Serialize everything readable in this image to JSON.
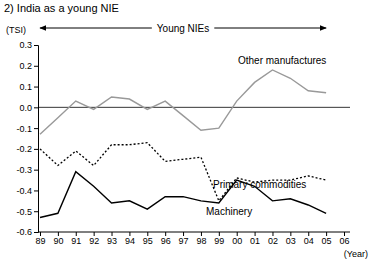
{
  "chart_data": {
    "type": "line",
    "title": "2) India as a young NIE",
    "y_label": "(TSI)",
    "x_label": "(Year)",
    "annotation": "Young NIEs",
    "categories": [
      "89",
      "90",
      "91",
      "92",
      "93",
      "94",
      "95",
      "96",
      "97",
      "98",
      "99",
      "00",
      "01",
      "02",
      "03",
      "04",
      "05",
      "06"
    ],
    "series": [
      {
        "name": "Other manufactures",
        "color": "#999999",
        "line_style": "solid",
        "values": [
          -0.13,
          -0.05,
          0.03,
          -0.01,
          0.05,
          0.04,
          -0.01,
          0.03,
          -0.04,
          -0.11,
          -0.1,
          0.03,
          0.12,
          0.18,
          0.14,
          0.08,
          0.07,
          null
        ]
      },
      {
        "name": "Primary commodities",
        "color": "#000000",
        "line_style": "dotted",
        "values": [
          -0.2,
          -0.28,
          -0.21,
          -0.28,
          -0.18,
          -0.18,
          -0.17,
          -0.26,
          -0.25,
          -0.24,
          -0.45,
          -0.34,
          -0.36,
          -0.35,
          -0.35,
          -0.33,
          -0.35,
          null
        ]
      },
      {
        "name": "Machinery",
        "color": "#000000",
        "line_style": "solid",
        "values": [
          -0.53,
          -0.51,
          -0.31,
          -0.38,
          -0.46,
          -0.45,
          -0.49,
          -0.43,
          -0.43,
          -0.45,
          -0.46,
          -0.35,
          -0.38,
          -0.45,
          -0.44,
          -0.47,
          -0.51,
          null
        ]
      }
    ],
    "ylim": [
      -0.6,
      0.3
    ],
    "yticks": [
      0.3,
      0.2,
      0.1,
      {
        "value": 0,
        "label": "0.0"
      },
      -0.1,
      -0.2,
      -0.3,
      -0.4,
      -0.5,
      -0.6
    ],
    "grid": false
  }
}
